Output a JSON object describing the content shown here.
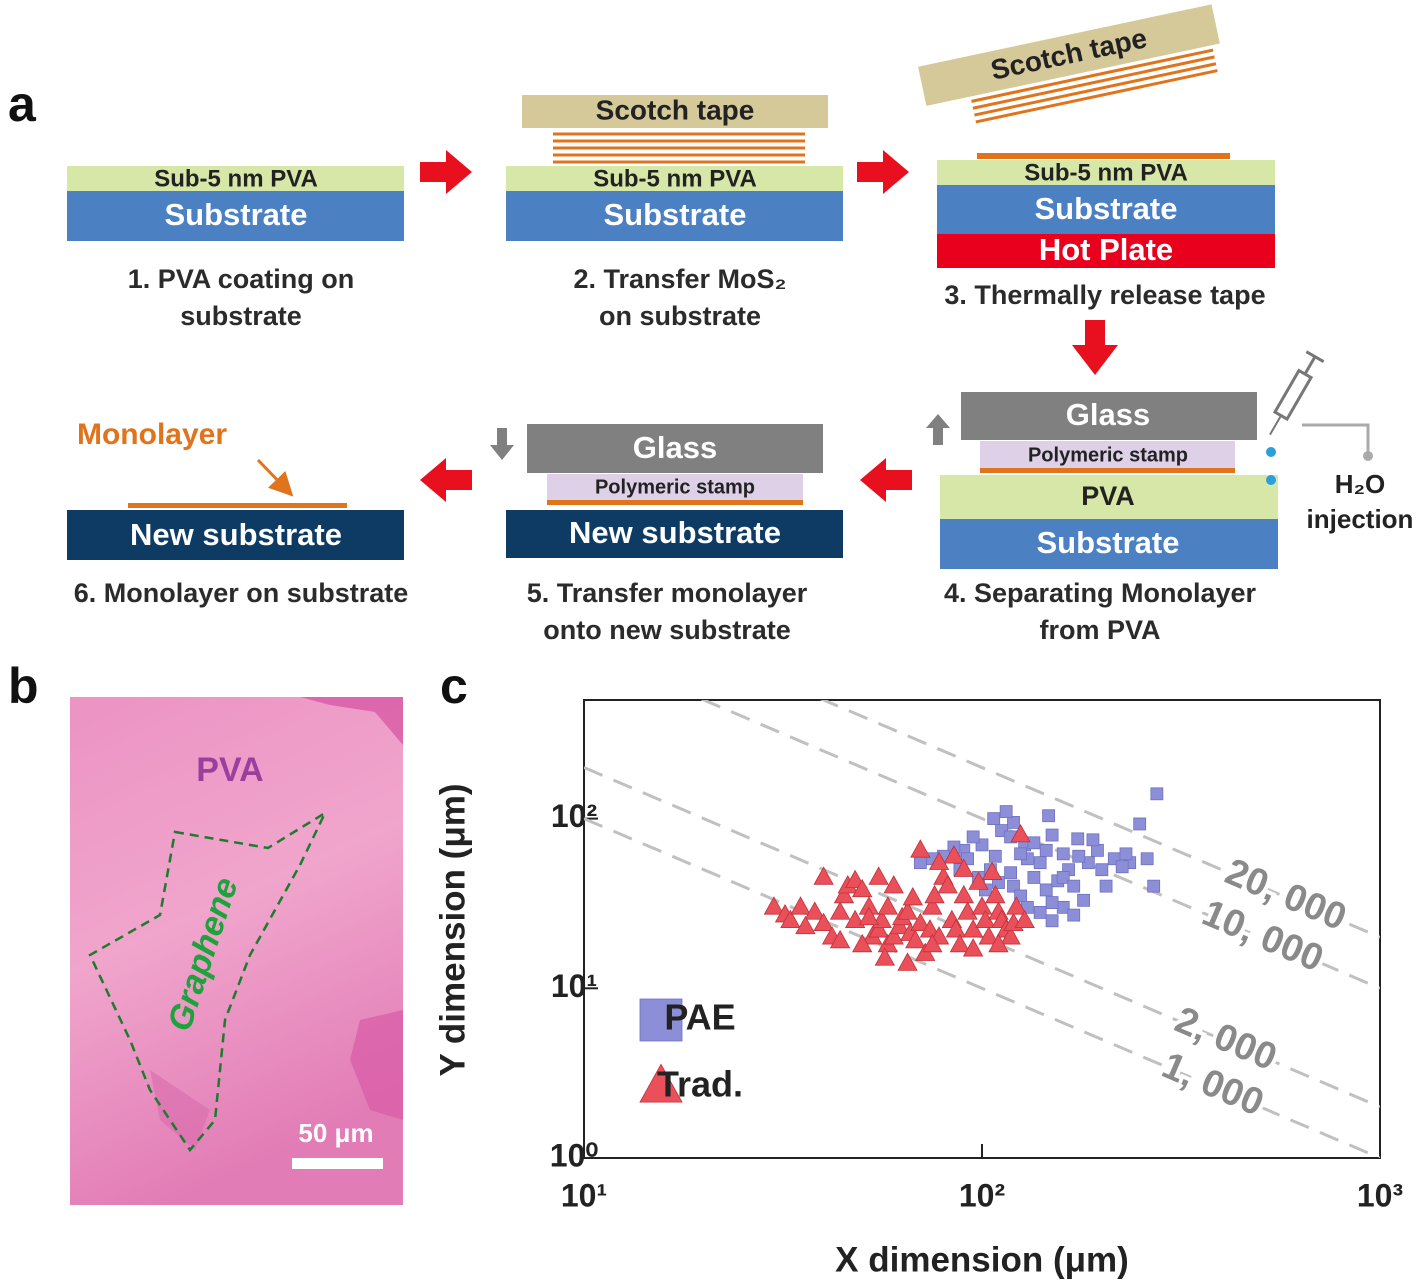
{
  "panel_labels": [
    "a",
    "b",
    "c"
  ],
  "diagram": {
    "steps": [
      {
        "layers": [
          "Sub-5 nm PVA",
          "Substrate"
        ],
        "caption": [
          "1. PVA coating on",
          "substrate"
        ]
      },
      {
        "layers": [
          "Scotch tape",
          "Sub-5 nm PVA",
          "Substrate"
        ],
        "caption": [
          "2. Transfer MoS₂",
          "on substrate"
        ]
      },
      {
        "layers": [
          "Scotch tape",
          "Sub-5 nm PVA",
          "Substrate",
          "Hot Plate"
        ],
        "caption": [
          "3. Thermally release tape"
        ]
      },
      {
        "layers": [
          "Glass",
          "Polymeric stamp",
          "PVA",
          "Substrate"
        ],
        "caption": [
          "4. Separating  Monolayer",
          "from PVA"
        ]
      },
      {
        "layers": [
          "Glass",
          "Polymeric stamp",
          "New substrate"
        ],
        "caption": [
          "5. Transfer monolayer",
          "onto new substrate"
        ]
      },
      {
        "layers": [
          "New substrate"
        ],
        "caption": [
          "6. Monolayer on substrate"
        ]
      }
    ],
    "monolayer_label": "Monolayer",
    "injection_label": [
      "H₂O",
      "injection"
    ]
  },
  "micrograph": {
    "region_label": "PVA",
    "flake_label": "Graphene",
    "scale_bar": "50 μm"
  },
  "chart_data": {
    "type": "scatter",
    "xlabel": "X dimension (μm)",
    "ylabel": "Y dimension (μm)",
    "log_x": true,
    "log_y": true,
    "xlim": [
      10,
      1000
    ],
    "ylim": [
      1,
      500
    ],
    "xticks": [
      {
        "value": 10,
        "label": "10¹"
      },
      {
        "value": 100,
        "label": "10²"
      },
      {
        "value": 1000,
        "label": "10³"
      }
    ],
    "yticks": [
      {
        "value": 1,
        "label": "10⁰"
      },
      {
        "value": 10,
        "label": "10¹"
      },
      {
        "value": 100,
        "label": "10²"
      }
    ],
    "legend": "left",
    "series": [
      {
        "name": "PAE",
        "color": "#8c8fd8",
        "marker": "square",
        "x": [
          275,
          249,
          260,
          270,
          235,
          215,
          205,
          180,
          147,
          174,
          160,
          165,
          150,
          140,
          135,
          128,
          120,
          115,
          112,
          108,
          105,
          100,
          95,
          90,
          85,
          80,
          75,
          70,
          120,
          125,
          130,
          140,
          150,
          160,
          170,
          145,
          155,
          185,
          195,
          200,
          190,
          175,
          130,
          118,
          110,
          125,
          135,
          98,
          102,
          88,
          160,
          145,
          118,
          107,
          92,
          150,
          170,
          230,
          225
        ],
        "values": [
          140,
          93,
          58,
          40,
          55,
          58,
          40,
          33,
          104,
          76,
          62,
          50,
          80,
          55,
          45,
          70,
          95,
          110,
          85,
          60,
          50,
          70,
          78,
          65,
          68,
          60,
          58,
          55,
          40,
          35,
          30,
          28,
          25,
          30,
          27,
          38,
          43,
          55,
          65,
          50,
          75,
          60,
          58,
          48,
          42,
          62,
          72,
          45,
          38,
          50,
          45,
          65,
          78,
          100,
          58,
          32,
          40,
          62,
          52
        ]
      },
      {
        "name": "Trad.",
        "color": "#e9505a",
        "marker": "triangle",
        "x": [
          30,
          32,
          33,
          35,
          38,
          36,
          40,
          42,
          44,
          45,
          46,
          48,
          50,
          52,
          53,
          55,
          56,
          58,
          60,
          62,
          63,
          65,
          66,
          68,
          70,
          72,
          74,
          75,
          76,
          78,
          80,
          82,
          84,
          86,
          88,
          90,
          92,
          95,
          98,
          100,
          102,
          104,
          106,
          108,
          110,
          112,
          115,
          118,
          120,
          122,
          125,
          128,
          70,
          60,
          55,
          48,
          44,
          40,
          50,
          57,
          65,
          75,
          85,
          95,
          110,
          67,
          52,
          58,
          78,
          90
        ],
        "values": [
          30,
          27,
          25,
          30,
          28,
          23,
          24,
          20,
          19,
          35,
          40,
          43,
          38,
          30,
          20,
          22,
          25,
          18,
          20,
          23,
          26,
          28,
          21,
          19,
          24,
          16,
          22,
          30,
          35,
          20,
          45,
          40,
          25,
          22,
          18,
          35,
          28,
          22,
          42,
          30,
          25,
          20,
          48,
          35,
          28,
          25,
          22,
          20,
          24,
          30,
          80,
          25,
          65,
          40,
          45,
          25,
          28,
          45,
          18,
          15,
          14,
          18,
          60,
          17,
          18,
          34,
          26,
          30,
          55,
          50
        ]
      }
    ],
    "reference_lines": [
      {
        "value": 20000,
        "label": "20, 000"
      },
      {
        "value": 10000,
        "label": "10, 000"
      },
      {
        "value": 2000,
        "label": "2, 000"
      },
      {
        "value": 1000,
        "label": "1, 000"
      }
    ]
  }
}
